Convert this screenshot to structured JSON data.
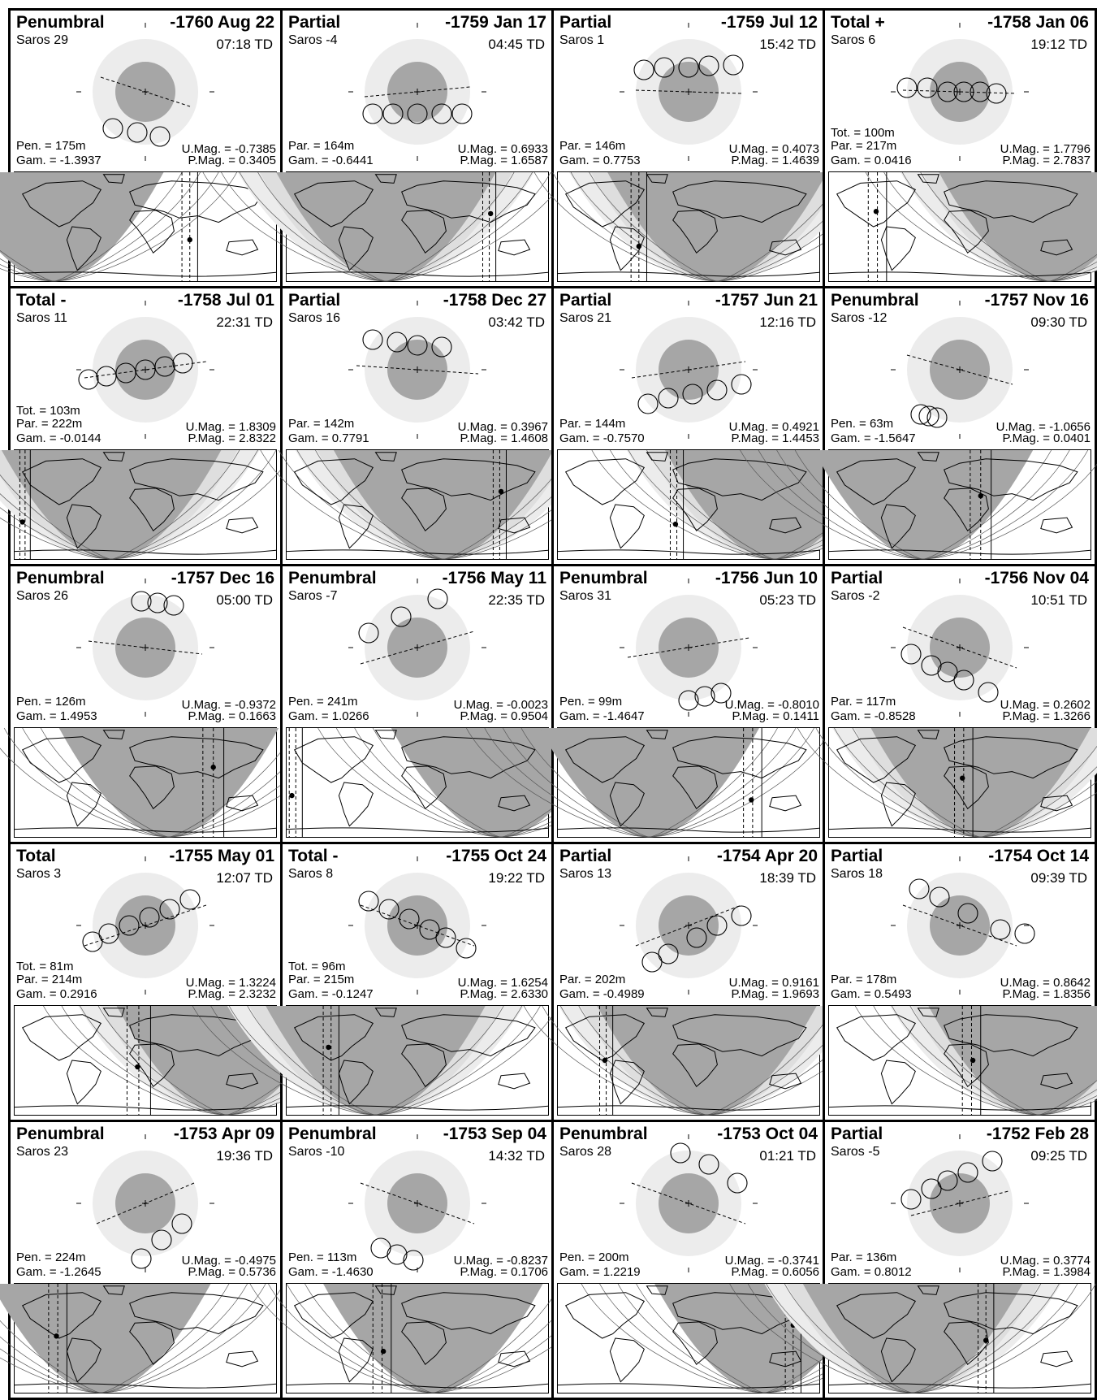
{
  "colors": {
    "umbra": "#a6a6a6",
    "penumbra": "#ececec",
    "map_night": "#a6a6a6",
    "map_penumbral_zone": "#dedede",
    "map_band": "#ececec",
    "border": "#000000"
  },
  "labels": {
    "tot": "Tot. =",
    "par": "Par. =",
    "pen": "Pen. =",
    "gam": "Gam. =",
    "umag": "U.Mag. =",
    "pmag": "P.Mag. =",
    "saros": "Saros"
  },
  "eclipses": [
    {
      "type": "Penumbral",
      "date": "-1760 Aug 22",
      "saros": "29",
      "time": "07:18 TD",
      "pen": "175m",
      "gam": "-1.3937",
      "umag": "-0.7385",
      "pmag": "0.3405",
      "path": [
        -55,
        -18,
        55,
        18
      ],
      "moons": [
        [
          -40,
          45
        ],
        [
          -10,
          50
        ],
        [
          18,
          55
        ]
      ],
      "gray": 0.2,
      "dot": [
        0.67,
        0.62
      ],
      "dashes": [
        0.64,
        0.7
      ]
    },
    {
      "type": "Partial",
      "date": "-1759 Jan 17",
      "saros": "-4",
      "time": "04:45 TD",
      "par": "164m",
      "gam": "-0.6441",
      "umag": "0.6933",
      "pmag": "1.6587",
      "path": [
        -65,
        6,
        65,
        -6
      ],
      "moons": [
        [
          -55,
          27
        ],
        [
          -30,
          27
        ],
        [
          0,
          27
        ],
        [
          30,
          27
        ],
        [
          55,
          27
        ]
      ],
      "gray": 0.5,
      "dot": [
        0.78,
        0.38
      ],
      "dashes": [
        0.75,
        0.8
      ]
    },
    {
      "type": "Partial",
      "date": "-1759 Jul 12",
      "saros": "1",
      "time": "15:42 TD",
      "par": "146m",
      "gam": "0.7753",
      "umag": "0.4073",
      "pmag": "1.4639",
      "path": [
        -65,
        -2,
        65,
        2
      ],
      "moons": [
        [
          -55,
          -27
        ],
        [
          -30,
          -30
        ],
        [
          0,
          -30
        ],
        [
          25,
          -32
        ],
        [
          55,
          -33
        ]
      ],
      "gray": 0.6,
      "dot": [
        0.31,
        0.68
      ],
      "dashes": [
        0.28,
        0.34
      ]
    },
    {
      "type": "Total +",
      "date": "-1758 Jan 06",
      "saros": "6",
      "time": "19:12 TD",
      "tot": "100m",
      "par": "217m",
      "gam": "0.0416",
      "umag": "1.7796",
      "pmag": "2.7837",
      "path": [
        -70,
        -2,
        70,
        2
      ],
      "moons": [
        [
          -65,
          -5
        ],
        [
          -40,
          -5
        ],
        [
          -15,
          0
        ],
        [
          5,
          0
        ],
        [
          25,
          0
        ],
        [
          45,
          2
        ]
      ],
      "gray": 0.8,
      "dot": [
        0.18,
        0.36
      ],
      "dashes": [
        0.15,
        0.22
      ]
    },
    {
      "type": "Total -",
      "date": "-1758 Jul 01",
      "saros": "11",
      "time": "22:31 TD",
      "tot": "103m",
      "par": "222m",
      "gam": "-0.0144",
      "umag": "1.8309",
      "pmag": "2.8322",
      "path": [
        -75,
        10,
        75,
        -10
      ],
      "moons": [
        [
          -70,
          12
        ],
        [
          -48,
          8
        ],
        [
          -24,
          4
        ],
        [
          0,
          0
        ],
        [
          24,
          -4
        ],
        [
          46,
          -8
        ]
      ],
      "gray": 0.8,
      "dot": [
        0.03,
        0.66
      ],
      "dashes": [
        0.02,
        0.06
      ]
    },
    {
      "type": "Partial",
      "date": "-1758 Dec 27",
      "saros": "16",
      "time": "03:42 TD",
      "par": "142m",
      "gam": "0.7791",
      "umag": "0.3967",
      "pmag": "1.4608",
      "path": [
        -75,
        -5,
        75,
        5
      ],
      "moons": [
        [
          -55,
          -37
        ],
        [
          -25,
          -34
        ],
        [
          0,
          -30
        ],
        [
          30,
          -28
        ]
      ],
      "gray": 0.5,
      "dot": [
        0.82,
        0.38
      ],
      "dashes": [
        0.79,
        0.84
      ]
    },
    {
      "type": "Partial",
      "date": "-1757 Jun 21",
      "saros": "21",
      "time": "12:16 TD",
      "par": "144m",
      "gam": "-0.7570",
      "umag": "0.4921",
      "pmag": "1.4453",
      "path": [
        -70,
        10,
        70,
        -10
      ],
      "moons": [
        [
          -50,
          42
        ],
        [
          -25,
          35
        ],
        [
          5,
          30
        ],
        [
          35,
          25
        ],
        [
          65,
          18
        ]
      ],
      "gray": 0.6,
      "dot": [
        0.45,
        0.68
      ],
      "dashes": [
        0.43,
        0.48
      ]
    },
    {
      "type": "Penumbral",
      "date": "-1757 Nov 16",
      "saros": "-12",
      "time": "09:30 TD",
      "pen": "63m",
      "gam": "-1.5647",
      "umag": "-1.0656",
      "pmag": "0.0401",
      "path": [
        -65,
        -18,
        65,
        18
      ],
      "moons": [
        [
          -48,
          55
        ],
        [
          -38,
          57
        ],
        [
          -28,
          59
        ]
      ],
      "gray": 0.3,
      "dot": [
        0.58,
        0.42
      ],
      "dashes": [
        0.54,
        0.62
      ]
    },
    {
      "type": "Penumbral",
      "date": "-1757 Dec 16",
      "saros": "26",
      "time": "05:00 TD",
      "pen": "126m",
      "gam": "1.4953",
      "umag": "-0.9372",
      "pmag": "0.1663",
      "path": [
        -70,
        -8,
        70,
        8
      ],
      "moons": [
        [
          -5,
          -57
        ],
        [
          15,
          -55
        ],
        [
          35,
          -52
        ]
      ],
      "gray": 0.3,
      "dot": [
        0.76,
        0.36
      ],
      "dashes": [
        0.72,
        0.8
      ]
    },
    {
      "type": "Penumbral",
      "date": "-1756 May 11",
      "saros": "-7",
      "time": "22:35 TD",
      "pen": "241m",
      "gam": "1.0266",
      "umag": "-0.0023",
      "pmag": "0.9504",
      "path": [
        -70,
        20,
        70,
        -20
      ],
      "moons": [
        [
          -60,
          -18
        ],
        [
          -20,
          -38
        ],
        [
          25,
          -60
        ]
      ],
      "gray": 0.3,
      "dot": [
        0.02,
        0.62
      ],
      "dashes": [
        0.01,
        0.06
      ]
    },
    {
      "type": "Penumbral",
      "date": "-1756 Jun 10",
      "saros": "31",
      "time": "05:23 TD",
      "pen": "99m",
      "gam": "-1.4647",
      "umag": "-0.8010",
      "pmag": "0.1411",
      "path": [
        -75,
        12,
        75,
        -12
      ],
      "moons": [
        [
          0,
          65
        ],
        [
          20,
          60
        ],
        [
          40,
          56
        ]
      ],
      "gray": 0.3,
      "dot": [
        0.74,
        0.66
      ],
      "dashes": [
        0.71,
        0.78
      ]
    },
    {
      "type": "Partial",
      "date": "-1756 Nov 04",
      "saros": "-2",
      "time": "10:51 TD",
      "par": "117m",
      "gam": "-0.8528",
      "umag": "0.2602",
      "pmag": "1.3266",
      "path": [
        -70,
        -25,
        70,
        25
      ],
      "moons": [
        [
          -60,
          8
        ],
        [
          -35,
          22
        ],
        [
          -15,
          30
        ],
        [
          5,
          40
        ],
        [
          35,
          55
        ]
      ],
      "gray": 0.6,
      "dot": [
        0.51,
        0.46
      ],
      "dashes": [
        0.48,
        0.55
      ]
    },
    {
      "type": "Total",
      "date": "-1755 May 01",
      "saros": "3",
      "time": "12:07 TD",
      "tot": "81m",
      "par": "214m",
      "gam": "0.2916",
      "umag": "1.3224",
      "pmag": "2.3232",
      "path": [
        -75,
        25,
        75,
        -25
      ],
      "moons": [
        [
          -65,
          20
        ],
        [
          -45,
          10
        ],
        [
          -20,
          0
        ],
        [
          5,
          -10
        ],
        [
          30,
          -20
        ],
        [
          55,
          -32
        ]
      ],
      "gray": 0.8,
      "dot": [
        0.47,
        0.56
      ],
      "dashes": [
        0.43,
        0.52
      ]
    },
    {
      "type": "Total -",
      "date": "-1755 Oct 24",
      "saros": "8",
      "time": "19:22 TD",
      "tot": "96m",
      "par": "215m",
      "gam": "-0.1247",
      "umag": "1.6254",
      "pmag": "2.6330",
      "path": [
        -70,
        -25,
        70,
        25
      ],
      "moons": [
        [
          -60,
          -30
        ],
        [
          -35,
          -20
        ],
        [
          -10,
          -8
        ],
        [
          15,
          5
        ],
        [
          35,
          15
        ],
        [
          60,
          28
        ]
      ],
      "gray": 0.8,
      "dot": [
        0.16,
        0.38
      ],
      "dashes": [
        0.14,
        0.2
      ]
    },
    {
      "type": "Partial",
      "date": "-1754 Apr 20",
      "saros": "13",
      "time": "18:39 TD",
      "par": "202m",
      "gam": "-0.4989",
      "umag": "0.9161",
      "pmag": "1.9693",
      "path": [
        -65,
        25,
        65,
        -25
      ],
      "moons": [
        [
          -45,
          45
        ],
        [
          -25,
          35
        ],
        [
          10,
          15
        ],
        [
          35,
          0
        ],
        [
          65,
          -12
        ]
      ],
      "gray": 0.6,
      "dot": [
        0.18,
        0.5
      ],
      "dashes": [
        0.16,
        0.21
      ]
    },
    {
      "type": "Partial",
      "date": "-1754 Oct 14",
      "saros": "18",
      "time": "09:39 TD",
      "par": "178m",
      "gam": "0.5493",
      "umag": "0.8642",
      "pmag": "1.8356",
      "path": [
        -70,
        -25,
        70,
        25
      ],
      "moons": [
        [
          -50,
          -45
        ],
        [
          -25,
          -35
        ],
        [
          10,
          -15
        ],
        [
          50,
          5
        ],
        [
          80,
          10
        ]
      ],
      "gray": 0.6,
      "dot": [
        0.55,
        0.5
      ],
      "dashes": [
        0.51,
        0.58
      ]
    },
    {
      "type": "Penumbral",
      "date": "-1753 Apr 09",
      "saros": "23",
      "time": "19:36 TD",
      "pen": "224m",
      "gam": "-1.2645",
      "umag": "-0.4975",
      "pmag": "0.5736",
      "path": [
        -60,
        25,
        60,
        -25
      ],
      "moons": [
        [
          -5,
          68
        ],
        [
          20,
          45
        ],
        [
          45,
          25
        ]
      ],
      "gray": 0.3,
      "dot": [
        0.16,
        0.48
      ],
      "dashes": [
        0.13,
        0.2
      ]
    },
    {
      "type": "Penumbral",
      "date": "-1753 Sep 04",
      "saros": "-10",
      "time": "14:32 TD",
      "pen": "113m",
      "gam": "-1.4630",
      "umag": "-0.8237",
      "pmag": "0.1706",
      "path": [
        -70,
        -25,
        70,
        25
      ],
      "moons": [
        [
          -45,
          55
        ],
        [
          -25,
          63
        ],
        [
          -5,
          70
        ]
      ],
      "gray": 0.3,
      "dot": [
        0.37,
        0.62
      ],
      "dashes": [
        0.33,
        0.4
      ]
    },
    {
      "type": "Penumbral",
      "date": "-1753 Oct 04",
      "saros": "28",
      "time": "01:21 TD",
      "pen": "200m",
      "gam": "1.2219",
      "umag": "-0.3741",
      "pmag": "0.6056",
      "path": [
        -70,
        -25,
        70,
        25
      ],
      "moons": [
        [
          -10,
          -62
        ],
        [
          25,
          -48
        ],
        [
          60,
          -25
        ]
      ],
      "gray": 0.3,
      "dot": [
        0.9,
        0.38
      ],
      "dashes": [
        0.87,
        0.93
      ]
    },
    {
      "type": "Partial",
      "date": "-1752 Feb 28",
      "saros": "-5",
      "time": "09:25 TD",
      "par": "136m",
      "gam": "0.8012",
      "umag": "0.3774",
      "pmag": "1.3984",
      "path": [
        -60,
        15,
        60,
        -15
      ],
      "moons": [
        [
          -60,
          -5
        ],
        [
          -35,
          -18
        ],
        [
          -15,
          -28
        ],
        [
          10,
          -38
        ],
        [
          40,
          -52
        ]
      ],
      "gray": 0.6,
      "dot": [
        0.6,
        0.52
      ],
      "dashes": [
        0.57,
        0.63
      ]
    }
  ]
}
